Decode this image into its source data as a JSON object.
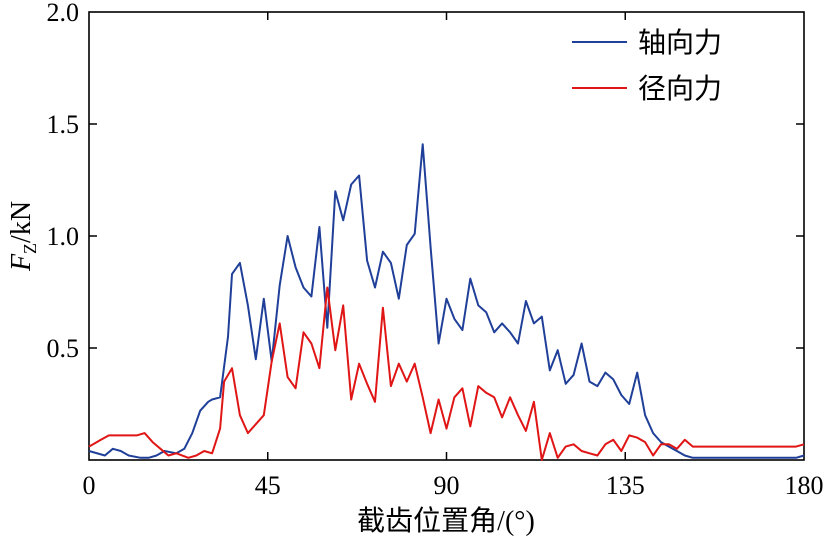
{
  "chart_data": {
    "type": "line",
    "xlabel": "截齿位置角/(°)",
    "ylabel_main": "F",
    "ylabel_sub": "Z",
    "ylabel_unit": "/kN",
    "xlim": [
      0,
      180
    ],
    "ylim": [
      0,
      2.0
    ],
    "xticks": [
      0,
      45,
      90,
      135,
      180
    ],
    "xtick_labels": [
      "0",
      "45",
      "90",
      "135",
      "180"
    ],
    "yticks": [
      0.5,
      1.0,
      1.5,
      2.0
    ],
    "ytick_labels": [
      "0.5",
      "1.0",
      "1.5",
      "2.0"
    ],
    "grid": false,
    "legend_position": "top-right",
    "series": [
      {
        "name": "轴向力",
        "color": "#1f3f99",
        "x": [
          0,
          4,
          6,
          8,
          10,
          13,
          15,
          17,
          19,
          22,
          24,
          26,
          28,
          30,
          31,
          33,
          35,
          36,
          38,
          40,
          42,
          44,
          46,
          48,
          50,
          52,
          54,
          56,
          58,
          60,
          62,
          64,
          66,
          68,
          70,
          72,
          74,
          76,
          78,
          80,
          82,
          84,
          86,
          88,
          90,
          92,
          94,
          96,
          98,
          100,
          102,
          104,
          106,
          108,
          110,
          112,
          114,
          116,
          118,
          120,
          122,
          124,
          126,
          128,
          130,
          132,
          134,
          136,
          138,
          140,
          142,
          144,
          146,
          148,
          150,
          152,
          154,
          156,
          158,
          160,
          162,
          164,
          166,
          168,
          170,
          172,
          174,
          176,
          178,
          180
        ],
        "y": [
          0.04,
          0.02,
          0.05,
          0.04,
          0.02,
          0.01,
          0.01,
          0.02,
          0.04,
          0.03,
          0.05,
          0.12,
          0.22,
          0.26,
          0.27,
          0.28,
          0.55,
          0.83,
          0.88,
          0.69,
          0.45,
          0.72,
          0.44,
          0.78,
          1.0,
          0.86,
          0.77,
          0.73,
          1.04,
          0.59,
          1.2,
          1.07,
          1.23,
          1.27,
          0.89,
          0.77,
          0.93,
          0.88,
          0.72,
          0.96,
          1.01,
          1.41,
          0.95,
          0.52,
          0.72,
          0.63,
          0.58,
          0.81,
          0.69,
          0.66,
          0.57,
          0.61,
          0.57,
          0.52,
          0.71,
          0.61,
          0.64,
          0.4,
          0.49,
          0.34,
          0.38,
          0.52,
          0.35,
          0.33,
          0.39,
          0.36,
          0.29,
          0.25,
          0.39,
          0.2,
          0.12,
          0.08,
          0.06,
          0.04,
          0.02,
          0.01,
          0.01,
          0.01,
          0.01,
          0.01,
          0.01,
          0.01,
          0.01,
          0.01,
          0.01,
          0.01,
          0.01,
          0.01,
          0.01,
          0.02
        ]
      },
      {
        "name": "径向力",
        "color": "#e01515",
        "x": [
          0,
          3,
          5,
          7,
          9,
          12,
          14,
          16,
          18,
          20,
          22,
          25,
          27,
          29,
          31,
          33,
          34,
          36,
          38,
          40,
          42,
          44,
          46,
          48,
          50,
          52,
          54,
          56,
          58,
          60,
          62,
          64,
          66,
          68,
          70,
          72,
          74,
          76,
          78,
          80,
          82,
          84,
          86,
          88,
          90,
          92,
          94,
          96,
          98,
          100,
          102,
          104,
          106,
          108,
          110,
          112,
          114,
          116,
          118,
          120,
          122,
          124,
          126,
          128,
          130,
          132,
          134,
          136,
          138,
          140,
          142,
          144,
          146,
          148,
          150,
          152,
          154,
          156,
          158,
          160,
          162,
          164,
          166,
          168,
          170,
          172,
          174,
          176,
          178,
          180
        ],
        "y": [
          0.06,
          0.09,
          0.11,
          0.11,
          0.11,
          0.11,
          0.12,
          0.08,
          0.05,
          0.02,
          0.03,
          0.01,
          0.02,
          0.04,
          0.03,
          0.14,
          0.35,
          0.41,
          0.2,
          0.12,
          0.16,
          0.2,
          0.44,
          0.61,
          0.37,
          0.32,
          0.57,
          0.52,
          0.41,
          0.77,
          0.49,
          0.69,
          0.27,
          0.43,
          0.34,
          0.26,
          0.68,
          0.33,
          0.43,
          0.35,
          0.43,
          0.28,
          0.12,
          0.27,
          0.14,
          0.28,
          0.32,
          0.15,
          0.33,
          0.3,
          0.28,
          0.19,
          0.28,
          0.2,
          0.13,
          0.26,
          0.0,
          0.12,
          0.01,
          0.06,
          0.07,
          0.04,
          0.03,
          0.02,
          0.07,
          0.09,
          0.04,
          0.11,
          0.1,
          0.08,
          0.02,
          0.07,
          0.07,
          0.05,
          0.09,
          0.06,
          0.06,
          0.06,
          0.06,
          0.06,
          0.06,
          0.06,
          0.06,
          0.06,
          0.06,
          0.06,
          0.06,
          0.06,
          0.06,
          0.07
        ]
      }
    ]
  }
}
